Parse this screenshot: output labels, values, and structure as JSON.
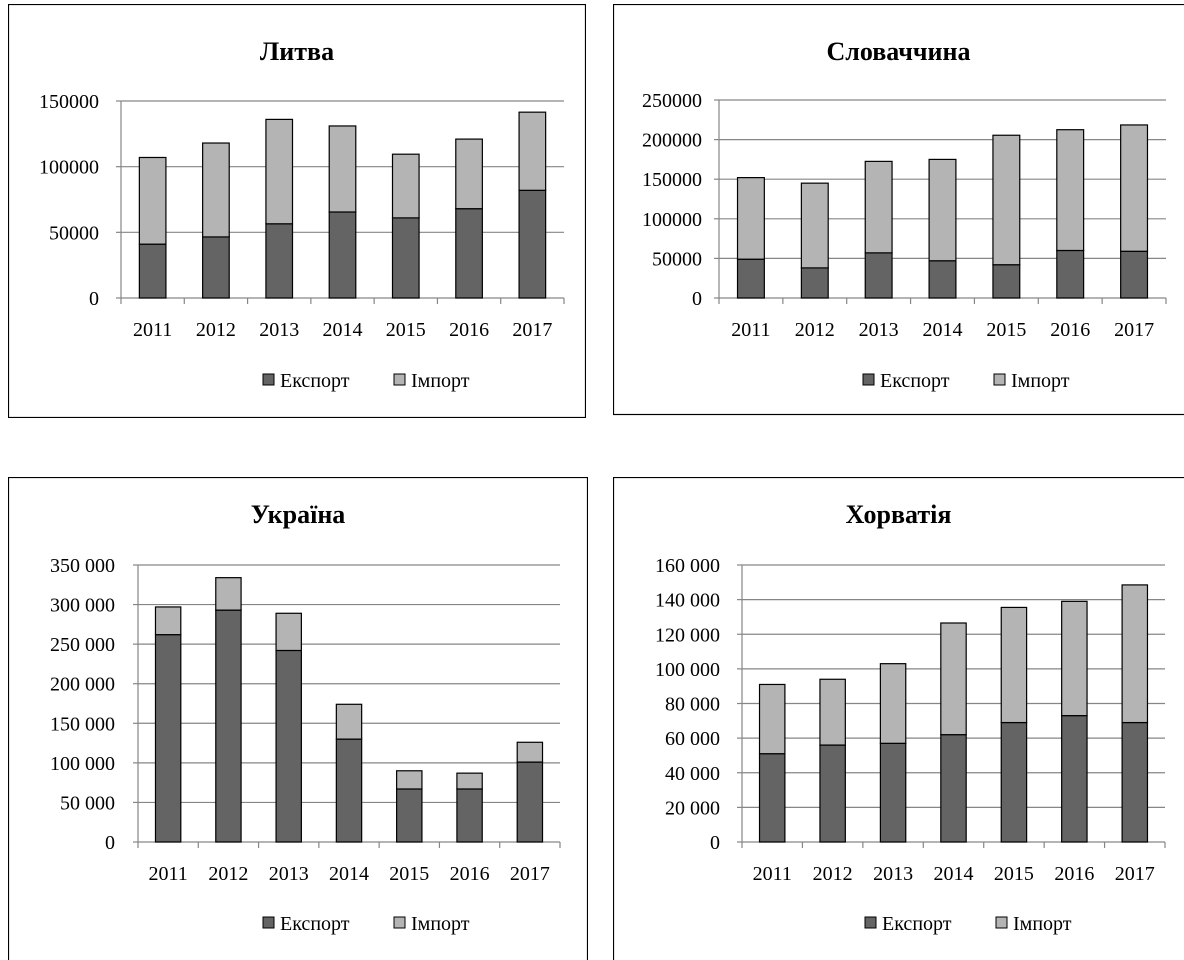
{
  "legend": {
    "export_label": "Експорт",
    "import_label": "Імпорт"
  },
  "colors": {
    "export": "#646464",
    "import": "#b4b4b4",
    "axis": "#868686",
    "grid": "#868686",
    "frame": "#000000",
    "outline": "#000000"
  },
  "chart_data": [
    {
      "type": "bar",
      "stacked": true,
      "title": "Литва",
      "categories": [
        "2011",
        "2012",
        "2013",
        "2014",
        "2015",
        "2016",
        "2017"
      ],
      "series": [
        {
          "name": "Експорт",
          "values": [
            41000,
            46500,
            56500,
            65500,
            61000,
            68000,
            82000
          ]
        },
        {
          "name": "Імпорт",
          "values": [
            66000,
            71500,
            79500,
            65500,
            48500,
            53000,
            59500
          ]
        }
      ],
      "ylim": [
        0,
        150000
      ],
      "yticks": [
        0,
        50000,
        100000,
        150000
      ],
      "ytick_labels": [
        "0",
        "50000",
        "100000",
        "150000"
      ],
      "grid": true,
      "legend_position": "bottom"
    },
    {
      "type": "bar",
      "stacked": true,
      "title": "Словаччина",
      "categories": [
        "2011",
        "2012",
        "2013",
        "2014",
        "2015",
        "2016",
        "2017"
      ],
      "series": [
        {
          "name": "Експорт",
          "values": [
            49000,
            38000,
            57000,
            47000,
            42000,
            60000,
            59000
          ]
        },
        {
          "name": "Імпорт",
          "values": [
            103000,
            107000,
            115500,
            128000,
            163500,
            152500,
            159500
          ]
        }
      ],
      "ylim": [
        0,
        250000
      ],
      "yticks": [
        0,
        50000,
        100000,
        150000,
        200000,
        250000
      ],
      "ytick_labels": [
        "0",
        "50000",
        "100000",
        "150000",
        "200000",
        "250000"
      ],
      "grid": true,
      "legend_position": "bottom"
    },
    {
      "type": "bar",
      "stacked": true,
      "title": "Україна",
      "categories": [
        "2011",
        "2012",
        "2013",
        "2014",
        "2015",
        "2016",
        "2017"
      ],
      "series": [
        {
          "name": "Експорт",
          "values": [
            262000,
            293000,
            242000,
            130000,
            67000,
            67000,
            101000
          ]
        },
        {
          "name": "Імпорт",
          "values": [
            35000,
            41000,
            47000,
            44000,
            23000,
            20000,
            25000
          ]
        }
      ],
      "ylim": [
        0,
        350000
      ],
      "yticks": [
        0,
        50000,
        100000,
        150000,
        200000,
        250000,
        300000,
        350000
      ],
      "ytick_labels": [
        "0",
        "50 000",
        "100 000",
        "150 000",
        "200 000",
        "250 000",
        "300 000",
        "350 000"
      ],
      "grid": true,
      "legend_position": "bottom"
    },
    {
      "type": "bar",
      "stacked": true,
      "title": "Хорватія",
      "categories": [
        "2011",
        "2012",
        "2013",
        "2014",
        "2015",
        "2016",
        "2017"
      ],
      "series": [
        {
          "name": "Експорт",
          "values": [
            51000,
            56000,
            57000,
            62000,
            69000,
            73000,
            69000
          ]
        },
        {
          "name": "Імпорт",
          "values": [
            40000,
            38000,
            46000,
            64500,
            66500,
            66000,
            79500
          ]
        }
      ],
      "ylim": [
        0,
        160000
      ],
      "yticks": [
        0,
        20000,
        40000,
        60000,
        80000,
        100000,
        120000,
        140000,
        160000
      ],
      "ytick_labels": [
        "0",
        "20 000",
        "40 000",
        "60 000",
        "80 000",
        "100 000",
        "120 000",
        "140 000",
        "160 000"
      ],
      "grid": true,
      "legend_position": "bottom"
    }
  ]
}
